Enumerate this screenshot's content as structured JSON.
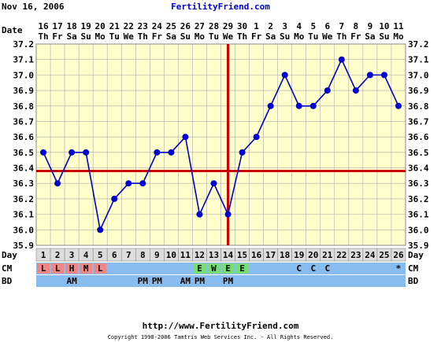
{
  "header": {
    "date": "Nov 16, 2006",
    "site": "FertilityFriend.com"
  },
  "row_labels": {
    "date": "Date",
    "day": "Day",
    "cm": "CM",
    "bd": "BD"
  },
  "footer": {
    "url": "http://www.FertilityFriend.com",
    "copyright": "Copyright 1998-2006 Tamtris Web Services Inc. - All Rights Reserved."
  },
  "colors": {
    "plot_bg": "#ffffcc",
    "grid": "#aaaaaa",
    "series": "#0000cc",
    "coverline": "#cc0000",
    "ovulation_line": "#cc0000",
    "day_row_bg": "#dddddd",
    "row_bg": "#88bbee",
    "cm_red": "#ee8888",
    "cm_green": "#77dd77",
    "header_link": "#0000cc"
  },
  "chart_data": {
    "type": "line",
    "title": "",
    "xlabel": "Day",
    "ylabel": "",
    "ylim": [
      35.9,
      37.2
    ],
    "yticks": [
      "35.9",
      "36.0",
      "36.1",
      "36.2",
      "36.3",
      "36.4",
      "36.5",
      "36.6",
      "36.7",
      "36.8",
      "36.9",
      "37.0",
      "37.1",
      "37.2"
    ],
    "dates": [
      "16",
      "17",
      "18",
      "19",
      "20",
      "21",
      "22",
      "23",
      "24",
      "25",
      "26",
      "27",
      "28",
      "29",
      "30",
      "1",
      "2",
      "3",
      "4",
      "5",
      "6",
      "7",
      "8",
      "9",
      "10",
      "11"
    ],
    "weekdays": [
      "Th",
      "Fr",
      "Sa",
      "Su",
      "Mo",
      "Tu",
      "We",
      "Th",
      "Fr",
      "Sa",
      "Su",
      "Mo",
      "Tu",
      "We",
      "Th",
      "Fr",
      "Sa",
      "Su",
      "Mo",
      "Tu",
      "We",
      "Th",
      "Fr",
      "Sa",
      "Su",
      "Mo"
    ],
    "days": [
      1,
      2,
      3,
      4,
      5,
      6,
      7,
      8,
      9,
      10,
      11,
      12,
      13,
      14,
      15,
      16,
      17,
      18,
      19,
      20,
      21,
      22,
      23,
      24,
      25,
      26
    ],
    "values": [
      36.5,
      36.3,
      36.5,
      36.5,
      36.0,
      36.2,
      36.3,
      36.3,
      36.5,
      36.5,
      36.6,
      36.1,
      36.3,
      36.1,
      36.5,
      36.6,
      36.8,
      37.0,
      36.8,
      36.8,
      36.9,
      37.1,
      36.9,
      37.0,
      37.0,
      36.8
    ],
    "coverline": 36.38,
    "ovulation_day": 14,
    "grid": true,
    "cm": [
      "L",
      "L",
      "H",
      "M",
      "L",
      "",
      "",
      "",
      "",
      "",
      "",
      "E",
      "W",
      "E",
      "E",
      "",
      "",
      "",
      "C",
      "C",
      "C",
      "",
      "",
      "",
      "",
      "*"
    ],
    "cm_colors": [
      "red",
      "red",
      "red",
      "red",
      "red",
      "",
      "",
      "",
      "",
      "",
      "",
      "green",
      "green",
      "green",
      "green",
      "",
      "",
      "",
      "",
      "",
      "",
      "",
      "",
      "",
      "",
      ""
    ],
    "bd": [
      "",
      "",
      "AM",
      "",
      "",
      "",
      "",
      "PM",
      "PM",
      "",
      "AM",
      "PM",
      "",
      "PM",
      "",
      "",
      "",
      "",
      "",
      "",
      "",
      "",
      "",
      "",
      "",
      ""
    ]
  }
}
